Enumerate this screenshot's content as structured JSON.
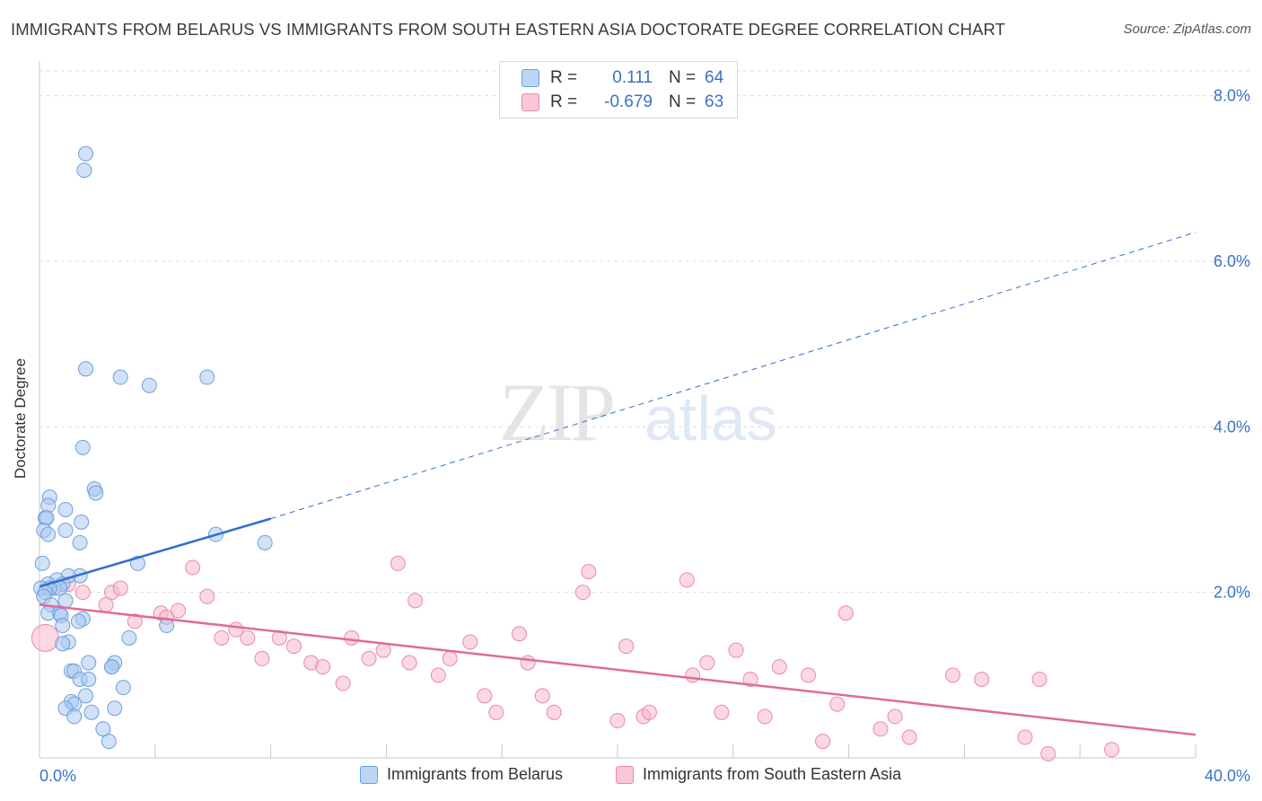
{
  "title": "IMMIGRANTS FROM BELARUS VS IMMIGRANTS FROM SOUTH EASTERN ASIA DOCTORATE DEGREE CORRELATION CHART",
  "source": "Source: ZipAtlas.com",
  "watermark": {
    "zip": "ZIP",
    "atlas": "atlas"
  },
  "legend_top": {
    "rows": [
      {
        "r_label": "R =",
        "r_value": "0.111",
        "n_label": "N =",
        "n_value": "64"
      },
      {
        "r_label": "R =",
        "r_value": "-0.679",
        "n_label": "N =",
        "n_value": "63"
      }
    ]
  },
  "colors": {
    "belarus_fill": "#a9c8f2",
    "belarus_stroke": "#6f9fd8",
    "belarus_line": "#2f6fcf",
    "sea_fill": "#f7b8cb",
    "sea_stroke": "#e98aa8",
    "sea_line": "#e06b95",
    "axis_tick_text": "#3a72c8",
    "grid": "#dcdcdc"
  },
  "chart_data": {
    "type": "scatter",
    "title": "IMMIGRANTS FROM BELARUS VS IMMIGRANTS FROM SOUTH EASTERN ASIA DOCTORATE DEGREE CORRELATION CHART",
    "xlabel": "",
    "ylabel": "Doctorate Degree",
    "xlim": [
      0,
      40
    ],
    "ylim": [
      0,
      8.3
    ],
    "x_tick_labels": [
      "0.0%",
      "40.0%"
    ],
    "y_ticks": [
      2,
      4,
      6,
      8
    ],
    "y_tick_labels": [
      "2.0%",
      "4.0%",
      "6.0%",
      "8.0%"
    ],
    "grid": "horizontal dashed",
    "legend_position": "bottom",
    "series": [
      {
        "name": "Immigrants from Belarus",
        "r": 0.111,
        "n": 64,
        "trend": {
          "x1": 0.0,
          "y1": 2.07,
          "x2": 8.0,
          "y2": 2.89,
          "dashed_to_x": 40.0,
          "dashed_to_y": 6.35
        },
        "points": [
          [
            1.6,
            7.3
          ],
          [
            1.55,
            7.1
          ],
          [
            1.6,
            4.7
          ],
          [
            2.8,
            4.6
          ],
          [
            3.8,
            4.5
          ],
          [
            5.8,
            4.6
          ],
          [
            1.5,
            3.75
          ],
          [
            1.9,
            3.25
          ],
          [
            1.95,
            3.2
          ],
          [
            0.35,
            3.15
          ],
          [
            0.3,
            3.05
          ],
          [
            0.9,
            3.0
          ],
          [
            0.2,
            2.9
          ],
          [
            0.25,
            2.9
          ],
          [
            1.45,
            2.85
          ],
          [
            0.15,
            2.75
          ],
          [
            0.9,
            2.75
          ],
          [
            0.3,
            2.7
          ],
          [
            6.1,
            2.7
          ],
          [
            1.4,
            2.6
          ],
          [
            7.8,
            2.6
          ],
          [
            0.1,
            2.35
          ],
          [
            3.4,
            2.35
          ],
          [
            1.4,
            2.2
          ],
          [
            1.0,
            2.2
          ],
          [
            0.6,
            2.15
          ],
          [
            0.8,
            2.1
          ],
          [
            0.3,
            2.1
          ],
          [
            0.5,
            2.05
          ],
          [
            0.7,
            2.05
          ],
          [
            0.05,
            2.05
          ],
          [
            0.35,
            2.05
          ],
          [
            0.2,
            2.0
          ],
          [
            0.15,
            1.95
          ],
          [
            0.9,
            1.9
          ],
          [
            0.4,
            1.85
          ],
          [
            0.3,
            1.75
          ],
          [
            0.7,
            1.75
          ],
          [
            0.75,
            1.72
          ],
          [
            1.5,
            1.68
          ],
          [
            1.35,
            1.65
          ],
          [
            0.8,
            1.6
          ],
          [
            4.4,
            1.6
          ],
          [
            3.1,
            1.45
          ],
          [
            1.0,
            1.4
          ],
          [
            0.8,
            1.38
          ],
          [
            2.6,
            1.15
          ],
          [
            1.7,
            1.15
          ],
          [
            2.5,
            1.1
          ],
          [
            2.5,
            1.1
          ],
          [
            1.1,
            1.05
          ],
          [
            1.2,
            1.05
          ],
          [
            1.4,
            0.95
          ],
          [
            1.7,
            0.95
          ],
          [
            2.9,
            0.85
          ],
          [
            1.6,
            0.75
          ],
          [
            1.1,
            0.68
          ],
          [
            1.2,
            0.65
          ],
          [
            0.9,
            0.6
          ],
          [
            2.6,
            0.6
          ],
          [
            1.2,
            0.5
          ],
          [
            1.8,
            0.55
          ],
          [
            2.2,
            0.35
          ],
          [
            2.4,
            0.2
          ]
        ]
      },
      {
        "name": "Immigrants from South Eastern Asia",
        "r": -0.679,
        "n": 63,
        "trend": {
          "x1": 0.0,
          "y1": 1.85,
          "x2": 40.0,
          "y2": 0.28
        },
        "points": [
          [
            0.2,
            1.45
          ],
          [
            1.0,
            2.1
          ],
          [
            1.5,
            2.0
          ],
          [
            2.5,
            2.0
          ],
          [
            2.3,
            1.85
          ],
          [
            2.8,
            2.05
          ],
          [
            5.3,
            2.3
          ],
          [
            5.8,
            1.95
          ],
          [
            3.3,
            1.65
          ],
          [
            4.2,
            1.75
          ],
          [
            4.4,
            1.7
          ],
          [
            4.8,
            1.78
          ],
          [
            6.3,
            1.45
          ],
          [
            6.8,
            1.55
          ],
          [
            7.2,
            1.45
          ],
          [
            7.7,
            1.2
          ],
          [
            8.3,
            1.45
          ],
          [
            8.8,
            1.35
          ],
          [
            9.4,
            1.15
          ],
          [
            9.8,
            1.1
          ],
          [
            10.5,
            0.9
          ],
          [
            10.8,
            1.45
          ],
          [
            11.4,
            1.2
          ],
          [
            11.9,
            1.3
          ],
          [
            12.4,
            2.35
          ],
          [
            12.8,
            1.15
          ],
          [
            13.0,
            1.9
          ],
          [
            13.8,
            1.0
          ],
          [
            14.2,
            1.2
          ],
          [
            14.9,
            1.4
          ],
          [
            15.4,
            0.75
          ],
          [
            15.8,
            0.55
          ],
          [
            16.6,
            1.5
          ],
          [
            16.9,
            1.15
          ],
          [
            17.4,
            0.75
          ],
          [
            17.8,
            0.55
          ],
          [
            18.8,
            2.0
          ],
          [
            19.0,
            2.25
          ],
          [
            20.0,
            0.45
          ],
          [
            20.3,
            1.35
          ],
          [
            20.9,
            0.5
          ],
          [
            21.1,
            0.55
          ],
          [
            22.4,
            2.15
          ],
          [
            22.6,
            1.0
          ],
          [
            23.1,
            1.15
          ],
          [
            23.6,
            0.55
          ],
          [
            24.1,
            1.3
          ],
          [
            24.6,
            0.95
          ],
          [
            25.1,
            0.5
          ],
          [
            25.6,
            1.1
          ],
          [
            26.6,
            1.0
          ],
          [
            27.1,
            0.2
          ],
          [
            27.6,
            0.65
          ],
          [
            27.9,
            1.75
          ],
          [
            29.1,
            0.35
          ],
          [
            29.6,
            0.5
          ],
          [
            30.1,
            0.25
          ],
          [
            31.6,
            1.0
          ],
          [
            32.6,
            0.95
          ],
          [
            34.1,
            0.25
          ],
          [
            34.6,
            0.95
          ],
          [
            34.9,
            0.05
          ],
          [
            37.1,
            0.1
          ]
        ]
      }
    ]
  }
}
